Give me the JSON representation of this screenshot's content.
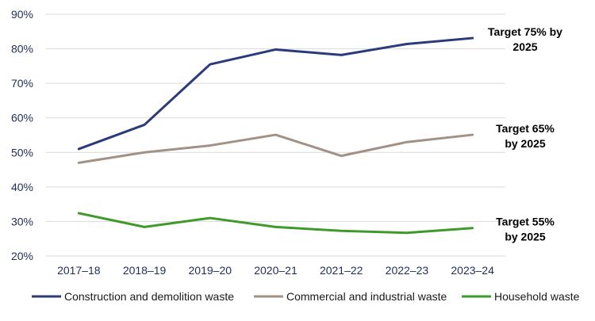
{
  "chart_data": {
    "type": "line",
    "title": "",
    "xlabel": "",
    "ylabel": "",
    "categories": [
      "2017–18",
      "2018–19",
      "2019–20",
      "2020–21",
      "2021–22",
      "2022–23",
      "2023–24"
    ],
    "ylim": [
      20,
      90
    ],
    "y_ticks": [
      20,
      30,
      40,
      50,
      60,
      70,
      80,
      90
    ],
    "y_tick_labels": [
      "20%",
      "30%",
      "40%",
      "50%",
      "60%",
      "70%",
      "80%",
      "90%"
    ],
    "grid": "horizontal",
    "legend_position": "bottom",
    "series": [
      {
        "name": "Construction and demolition waste",
        "color": "#2b3a7a",
        "values": [
          51,
          58,
          75.5,
          79.8,
          78.2,
          81.4,
          83.1
        ]
      },
      {
        "name": "Commercial and industrial waste",
        "color": "#a39086",
        "values": [
          47,
          50,
          52,
          55.1,
          49,
          53,
          55.1
        ]
      },
      {
        "name": "Household waste",
        "color": "#3f9a2c",
        "values": [
          32.4,
          28.4,
          31,
          28.4,
          27.3,
          26.7,
          28.1
        ]
      }
    ],
    "annotations": [
      {
        "series": 0,
        "lines": [
          "Target 75% by",
          "2025"
        ]
      },
      {
        "series": 1,
        "lines": [
          "Target 65%",
          "by 2025"
        ]
      },
      {
        "series": 2,
        "lines": [
          "Target 55%",
          "by 2025"
        ]
      }
    ]
  }
}
